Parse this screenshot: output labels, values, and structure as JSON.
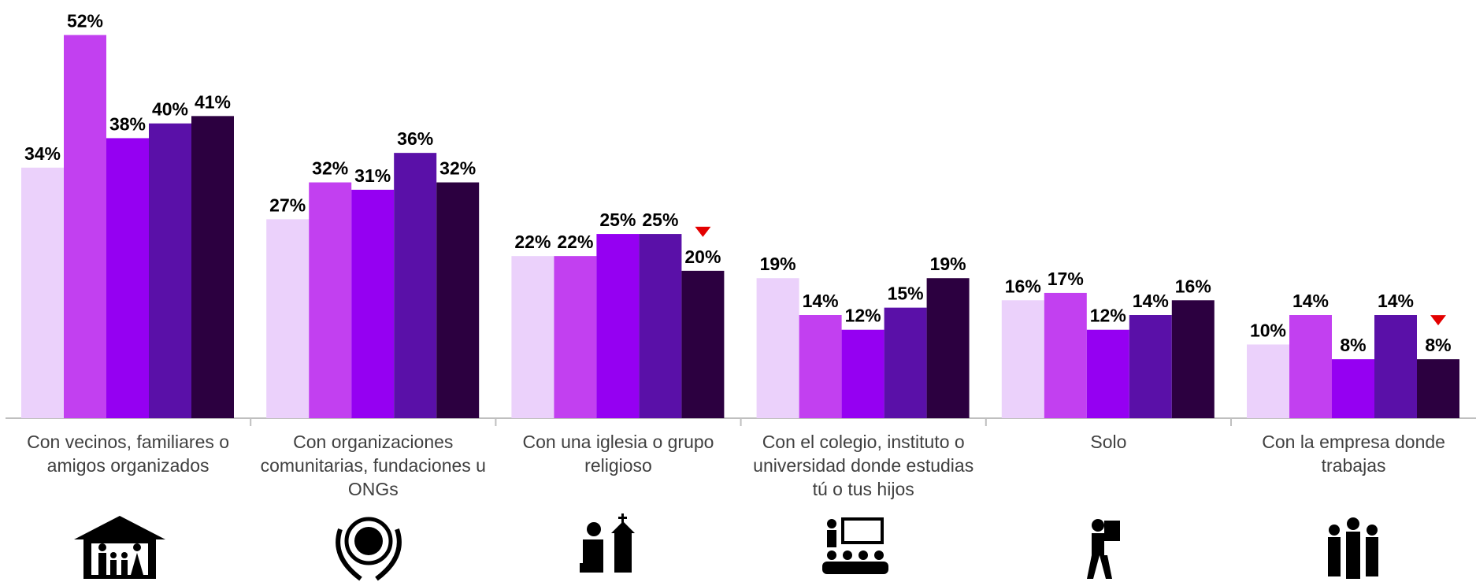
{
  "chart_data": {
    "type": "bar",
    "categories": [
      "Con vecinos, familiares o amigos organizados",
      "Con organizaciones comunitarias, fundaciones u ONGs",
      "Con una iglesia o grupo religioso",
      "Con el colegio, instituto o universidad donde estudias tú o tus hijos",
      "Solo",
      "Con la empresa donde trabajas"
    ],
    "series": [
      {
        "color": "#ebd1fb",
        "values": [
          34,
          27,
          22,
          19,
          16,
          10
        ],
        "value_labels": [
          "34%",
          "27%",
          "22%",
          "19%",
          "16%",
          "10%"
        ]
      },
      {
        "color": "#c240f0",
        "values": [
          52,
          32,
          22,
          14,
          17,
          14
        ],
        "value_labels": [
          "52%",
          "32%",
          "22%",
          "14%",
          "17%",
          "14%"
        ]
      },
      {
        "color": "#9500f2",
        "values": [
          38,
          31,
          25,
          12,
          12,
          8
        ],
        "value_labels": [
          "38%",
          "31%",
          "25%",
          "12%",
          "12%",
          "8%"
        ]
      },
      {
        "color": "#5a10a8",
        "values": [
          40,
          36,
          25,
          15,
          14,
          14
        ],
        "value_labels": [
          "40%",
          "36%",
          "25%",
          "15%",
          "14%",
          "14%"
        ]
      },
      {
        "color": "#2c0040",
        "values": [
          41,
          32,
          20,
          19,
          16,
          8
        ],
        "value_labels": [
          "41%",
          "32%",
          "20%",
          "19%",
          "16%",
          "8%"
        ],
        "down_markers": [
          false,
          false,
          true,
          false,
          false,
          true
        ]
      }
    ],
    "ylim": [
      0,
      56
    ],
    "marker_color": "#e30000"
  }
}
